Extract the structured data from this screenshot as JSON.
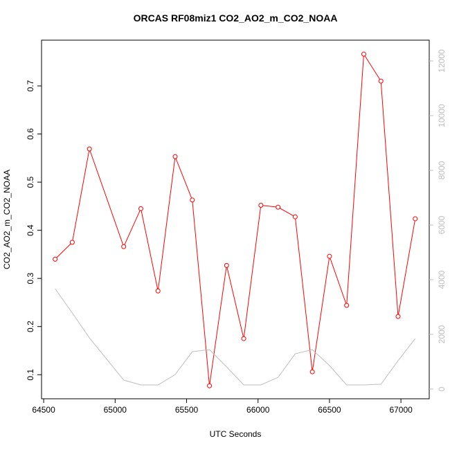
{
  "chart_data": {
    "type": "line",
    "title": "ORCAS RF08miz1 CO2_AO2_m_CO2_NOAA",
    "x_label": "UTC Seconds",
    "y_label": "CO2_AO2_m_CO2_NOAA",
    "x": [
      64580,
      64700,
      64820,
      65060,
      65180,
      65300,
      65420,
      65540,
      65660,
      65780,
      65900,
      66020,
      66140,
      66260,
      66380,
      66500,
      66620,
      66740,
      66860,
      66980,
      67100
    ],
    "series": [
      {
        "color": "#ff0000",
        "marker": "circle",
        "values": [
          0.34,
          0.375,
          0.569,
          0.366,
          0.445,
          0.274,
          0.553,
          0.463,
          0.077,
          0.327,
          0.175,
          0.452,
          0.448,
          0.428,
          0.106,
          0.346,
          0.244,
          0.766,
          0.71,
          0.221,
          0.424
        ]
      },
      {
        "color": "#bebebe",
        "axis": "y2",
        "values": [
          3671,
          2785,
          1873,
          329,
          152,
          152,
          532,
          1367,
          1443,
          810,
          152,
          152,
          430,
          1291,
          1443,
          861,
          152,
          152,
          177,
          1038,
          1848
        ]
      }
    ],
    "xlim": [
      64485,
      67198
    ],
    "xticks": [
      64500,
      65000,
      65500,
      66000,
      66500,
      67000
    ],
    "ylim": [
      0.05,
      0.795
    ],
    "yticks": [
      0.1,
      0.2,
      0.3,
      0.4,
      0.5,
      0.6,
      0.7
    ],
    "y2lim": [
      -354,
      12760
    ],
    "y2ticks": [
      0,
      2000,
      4000,
      6000,
      8000,
      10000,
      12000
    ],
    "y2_color": "#bebebe"
  }
}
